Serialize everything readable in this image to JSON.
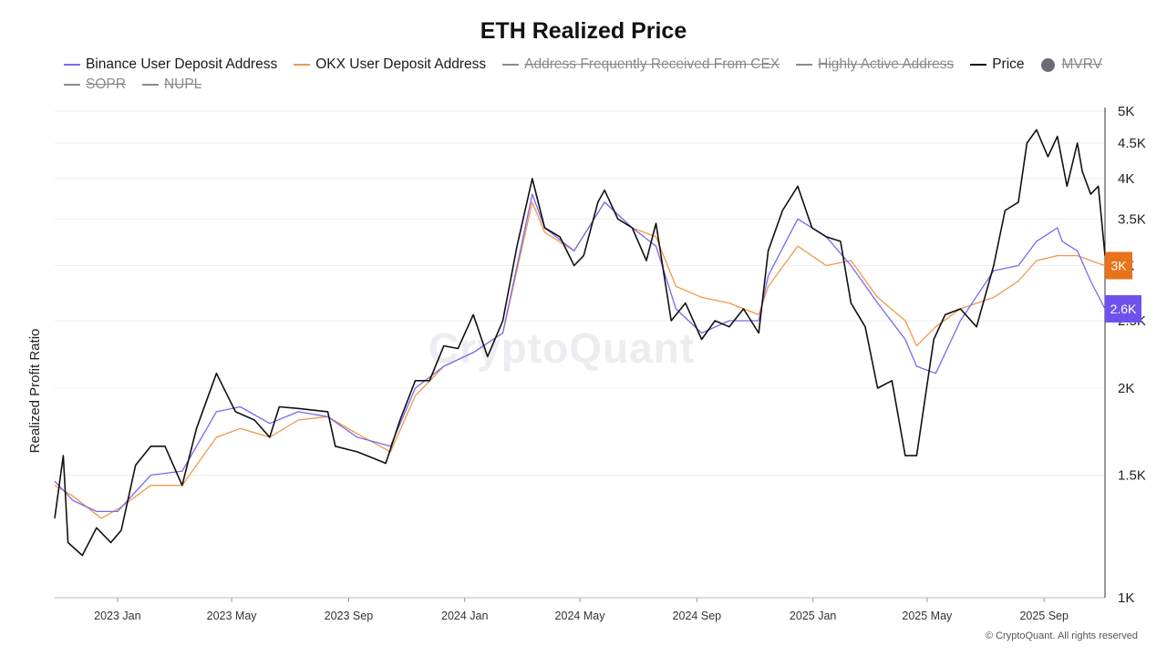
{
  "chart_data": {
    "type": "line",
    "title": "ETH Realized Price",
    "ylabel": "Realized Profit Ratio",
    "yscale": "log",
    "ylim": [
      1000,
      5000
    ],
    "y_ticks": [
      {
        "value": 1000,
        "label": "1K"
      },
      {
        "value": 1500,
        "label": "1.5K"
      },
      {
        "value": 2000,
        "label": "2K"
      },
      {
        "value": 2500,
        "label": "2.5K"
      },
      {
        "value": 3000,
        "label": "3K"
      },
      {
        "value": 3500,
        "label": "3.5K"
      },
      {
        "value": 4000,
        "label": "4K"
      },
      {
        "value": 4500,
        "label": "4.5K"
      },
      {
        "value": 5000,
        "label": "5K"
      }
    ],
    "xlim": [
      "2022-10-27",
      "2025-11-04"
    ],
    "x_ticks": [
      {
        "value": "2023-01-01",
        "label": "2023 Jan"
      },
      {
        "value": "2023-05-01",
        "label": "2023 May"
      },
      {
        "value": "2023-09-01",
        "label": "2023 Sep"
      },
      {
        "value": "2024-01-01",
        "label": "2024 Jan"
      },
      {
        "value": "2024-05-01",
        "label": "2024 May"
      },
      {
        "value": "2024-09-01",
        "label": "2024 Sep"
      },
      {
        "value": "2025-01-01",
        "label": "2025 Jan"
      },
      {
        "value": "2025-05-01",
        "label": "2025 May"
      },
      {
        "value": "2025-09-01",
        "label": "2025 Sep"
      }
    ],
    "grid": true,
    "legend_position": "top",
    "legend": [
      {
        "name": "Binance User Deposit Address",
        "color": "#7b68ee",
        "marker": "line",
        "visible": true
      },
      {
        "name": "OKX User Deposit Address",
        "color": "#f0984a",
        "marker": "line",
        "visible": true
      },
      {
        "name": "Address Frequently Received From CEX",
        "color": "#8a8a8a",
        "marker": "line",
        "visible": false
      },
      {
        "name": "Highly Active Address",
        "color": "#8a8a8a",
        "marker": "line",
        "visible": false
      },
      {
        "name": "Price",
        "color": "#111111",
        "marker": "line",
        "visible": true
      },
      {
        "name": "MVRV",
        "color": "#6b6b78",
        "marker": "dot",
        "visible": false
      },
      {
        "name": "SOPR",
        "color": "#8a8a8a",
        "marker": "line",
        "visible": false
      },
      {
        "name": "NUPL",
        "color": "#8a8a8a",
        "marker": "line",
        "visible": false
      }
    ],
    "series": [
      {
        "name": "Price",
        "color": "#111111",
        "x": [
          "2022-10-27",
          "2022-11-05",
          "2022-11-10",
          "2022-11-25",
          "2022-12-10",
          "2022-12-25",
          "2023-01-05",
          "2023-01-20",
          "2023-02-05",
          "2023-02-20",
          "2023-03-10",
          "2023-03-25",
          "2023-04-15",
          "2023-05-05",
          "2023-05-25",
          "2023-06-10",
          "2023-06-20",
          "2023-07-10",
          "2023-07-25",
          "2023-08-10",
          "2023-08-18",
          "2023-09-10",
          "2023-09-25",
          "2023-10-10",
          "2023-10-25",
          "2023-11-10",
          "2023-11-25",
          "2023-12-10",
          "2023-12-25",
          "2024-01-10",
          "2024-01-25",
          "2024-02-10",
          "2024-02-25",
          "2024-03-12",
          "2024-03-25",
          "2024-04-10",
          "2024-04-25",
          "2024-05-05",
          "2024-05-20",
          "2024-05-27",
          "2024-06-10",
          "2024-06-25",
          "2024-07-10",
          "2024-07-20",
          "2024-08-05",
          "2024-08-20",
          "2024-09-06",
          "2024-09-20",
          "2024-10-05",
          "2024-10-20",
          "2024-11-05",
          "2024-11-15",
          "2024-11-30",
          "2024-12-16",
          "2024-12-31",
          "2025-01-15",
          "2025-01-30",
          "2025-02-10",
          "2025-02-25",
          "2025-03-10",
          "2025-03-25",
          "2025-04-08",
          "2025-04-20",
          "2025-05-08",
          "2025-05-20",
          "2025-06-05",
          "2025-06-22",
          "2025-07-10",
          "2025-07-22",
          "2025-08-05",
          "2025-08-14",
          "2025-08-24",
          "2025-09-05",
          "2025-09-15",
          "2025-09-25",
          "2025-10-06",
          "2025-10-11",
          "2025-10-20",
          "2025-10-28",
          "2025-11-04"
        ],
        "y": [
          1300,
          1600,
          1200,
          1150,
          1260,
          1200,
          1250,
          1550,
          1650,
          1650,
          1450,
          1750,
          2100,
          1850,
          1800,
          1700,
          1880,
          1870,
          1860,
          1850,
          1650,
          1620,
          1590,
          1560,
          1800,
          2050,
          2050,
          2300,
          2280,
          2550,
          2220,
          2500,
          3200,
          4000,
          3400,
          3300,
          3000,
          3100,
          3700,
          3850,
          3500,
          3400,
          3050,
          3450,
          2500,
          2650,
          2350,
          2500,
          2450,
          2600,
          2400,
          3150,
          3600,
          3900,
          3400,
          3300,
          3250,
          2650,
          2450,
          2000,
          2050,
          1600,
          1600,
          2350,
          2550,
          2600,
          2450,
          3000,
          3600,
          3700,
          4500,
          4700,
          4300,
          4600,
          3900,
          4500,
          4100,
          3800,
          3900,
          3100
        ]
      },
      {
        "name": "Binance User Deposit Address",
        "color": "#7b68ee",
        "x": [
          "2022-10-27",
          "2022-11-15",
          "2022-12-10",
          "2023-01-01",
          "2023-02-05",
          "2023-03-10",
          "2023-04-15",
          "2023-05-10",
          "2023-06-10",
          "2023-07-10",
          "2023-08-10",
          "2023-09-10",
          "2023-10-15",
          "2023-11-10",
          "2023-12-10",
          "2024-01-10",
          "2024-02-10",
          "2024-03-12",
          "2024-03-25",
          "2024-04-25",
          "2024-05-27",
          "2024-06-25",
          "2024-07-20",
          "2024-08-10",
          "2024-09-06",
          "2024-10-05",
          "2024-11-05",
          "2024-11-15",
          "2024-12-16",
          "2025-01-15",
          "2025-02-10",
          "2025-03-10",
          "2025-04-08",
          "2025-04-20",
          "2025-05-10",
          "2025-06-05",
          "2025-07-10",
          "2025-08-05",
          "2025-08-24",
          "2025-09-15",
          "2025-09-20",
          "2025-10-06",
          "2025-10-20",
          "2025-11-04"
        ],
        "y": [
          1470,
          1380,
          1330,
          1330,
          1500,
          1520,
          1850,
          1880,
          1780,
          1850,
          1820,
          1700,
          1650,
          2000,
          2150,
          2250,
          2400,
          3800,
          3400,
          3150,
          3700,
          3400,
          3200,
          2600,
          2400,
          2500,
          2500,
          2900,
          3500,
          3300,
          3000,
          2650,
          2350,
          2150,
          2100,
          2500,
          2950,
          3000,
          3250,
          3400,
          3250,
          3150,
          2850,
          2600
        ]
      },
      {
        "name": "OKX User Deposit Address",
        "color": "#f0984a",
        "x": [
          "2022-10-27",
          "2022-11-15",
          "2022-12-15",
          "2023-01-05",
          "2023-02-05",
          "2023-03-10",
          "2023-04-15",
          "2023-05-10",
          "2023-06-10",
          "2023-07-10",
          "2023-08-10",
          "2023-09-10",
          "2023-10-15",
          "2023-11-10",
          "2023-12-10",
          "2024-01-10",
          "2024-02-10",
          "2024-03-12",
          "2024-03-25",
          "2024-04-25",
          "2024-05-27",
          "2024-06-25",
          "2024-07-20",
          "2024-08-10",
          "2024-09-06",
          "2024-10-05",
          "2024-11-05",
          "2024-11-15",
          "2024-12-16",
          "2025-01-15",
          "2025-02-10",
          "2025-03-10",
          "2025-04-08",
          "2025-04-20",
          "2025-05-10",
          "2025-06-05",
          "2025-07-10",
          "2025-08-05",
          "2025-08-24",
          "2025-09-15",
          "2025-10-06",
          "2025-10-20",
          "2025-11-04"
        ],
        "y": [
          1450,
          1400,
          1300,
          1350,
          1450,
          1450,
          1700,
          1750,
          1700,
          1800,
          1820,
          1720,
          1620,
          1950,
          2150,
          2250,
          2400,
          3700,
          3350,
          3150,
          3700,
          3400,
          3300,
          2800,
          2700,
          2650,
          2550,
          2800,
          3200,
          3000,
          3050,
          2700,
          2500,
          2300,
          2450,
          2600,
          2700,
          2850,
          3050,
          3100,
          3100,
          3050,
          3000
        ]
      }
    ],
    "last_value_labels": [
      {
        "series": "OKX User Deposit Address",
        "label": "3K",
        "value": 3000,
        "color": "#e8731a"
      },
      {
        "series": "Binance User Deposit Address",
        "label": "2.6K",
        "value": 2600,
        "color": "#6f52ed"
      }
    ]
  },
  "watermark": "CryptoQuant",
  "copyright": "© CryptoQuant. All rights reserved"
}
